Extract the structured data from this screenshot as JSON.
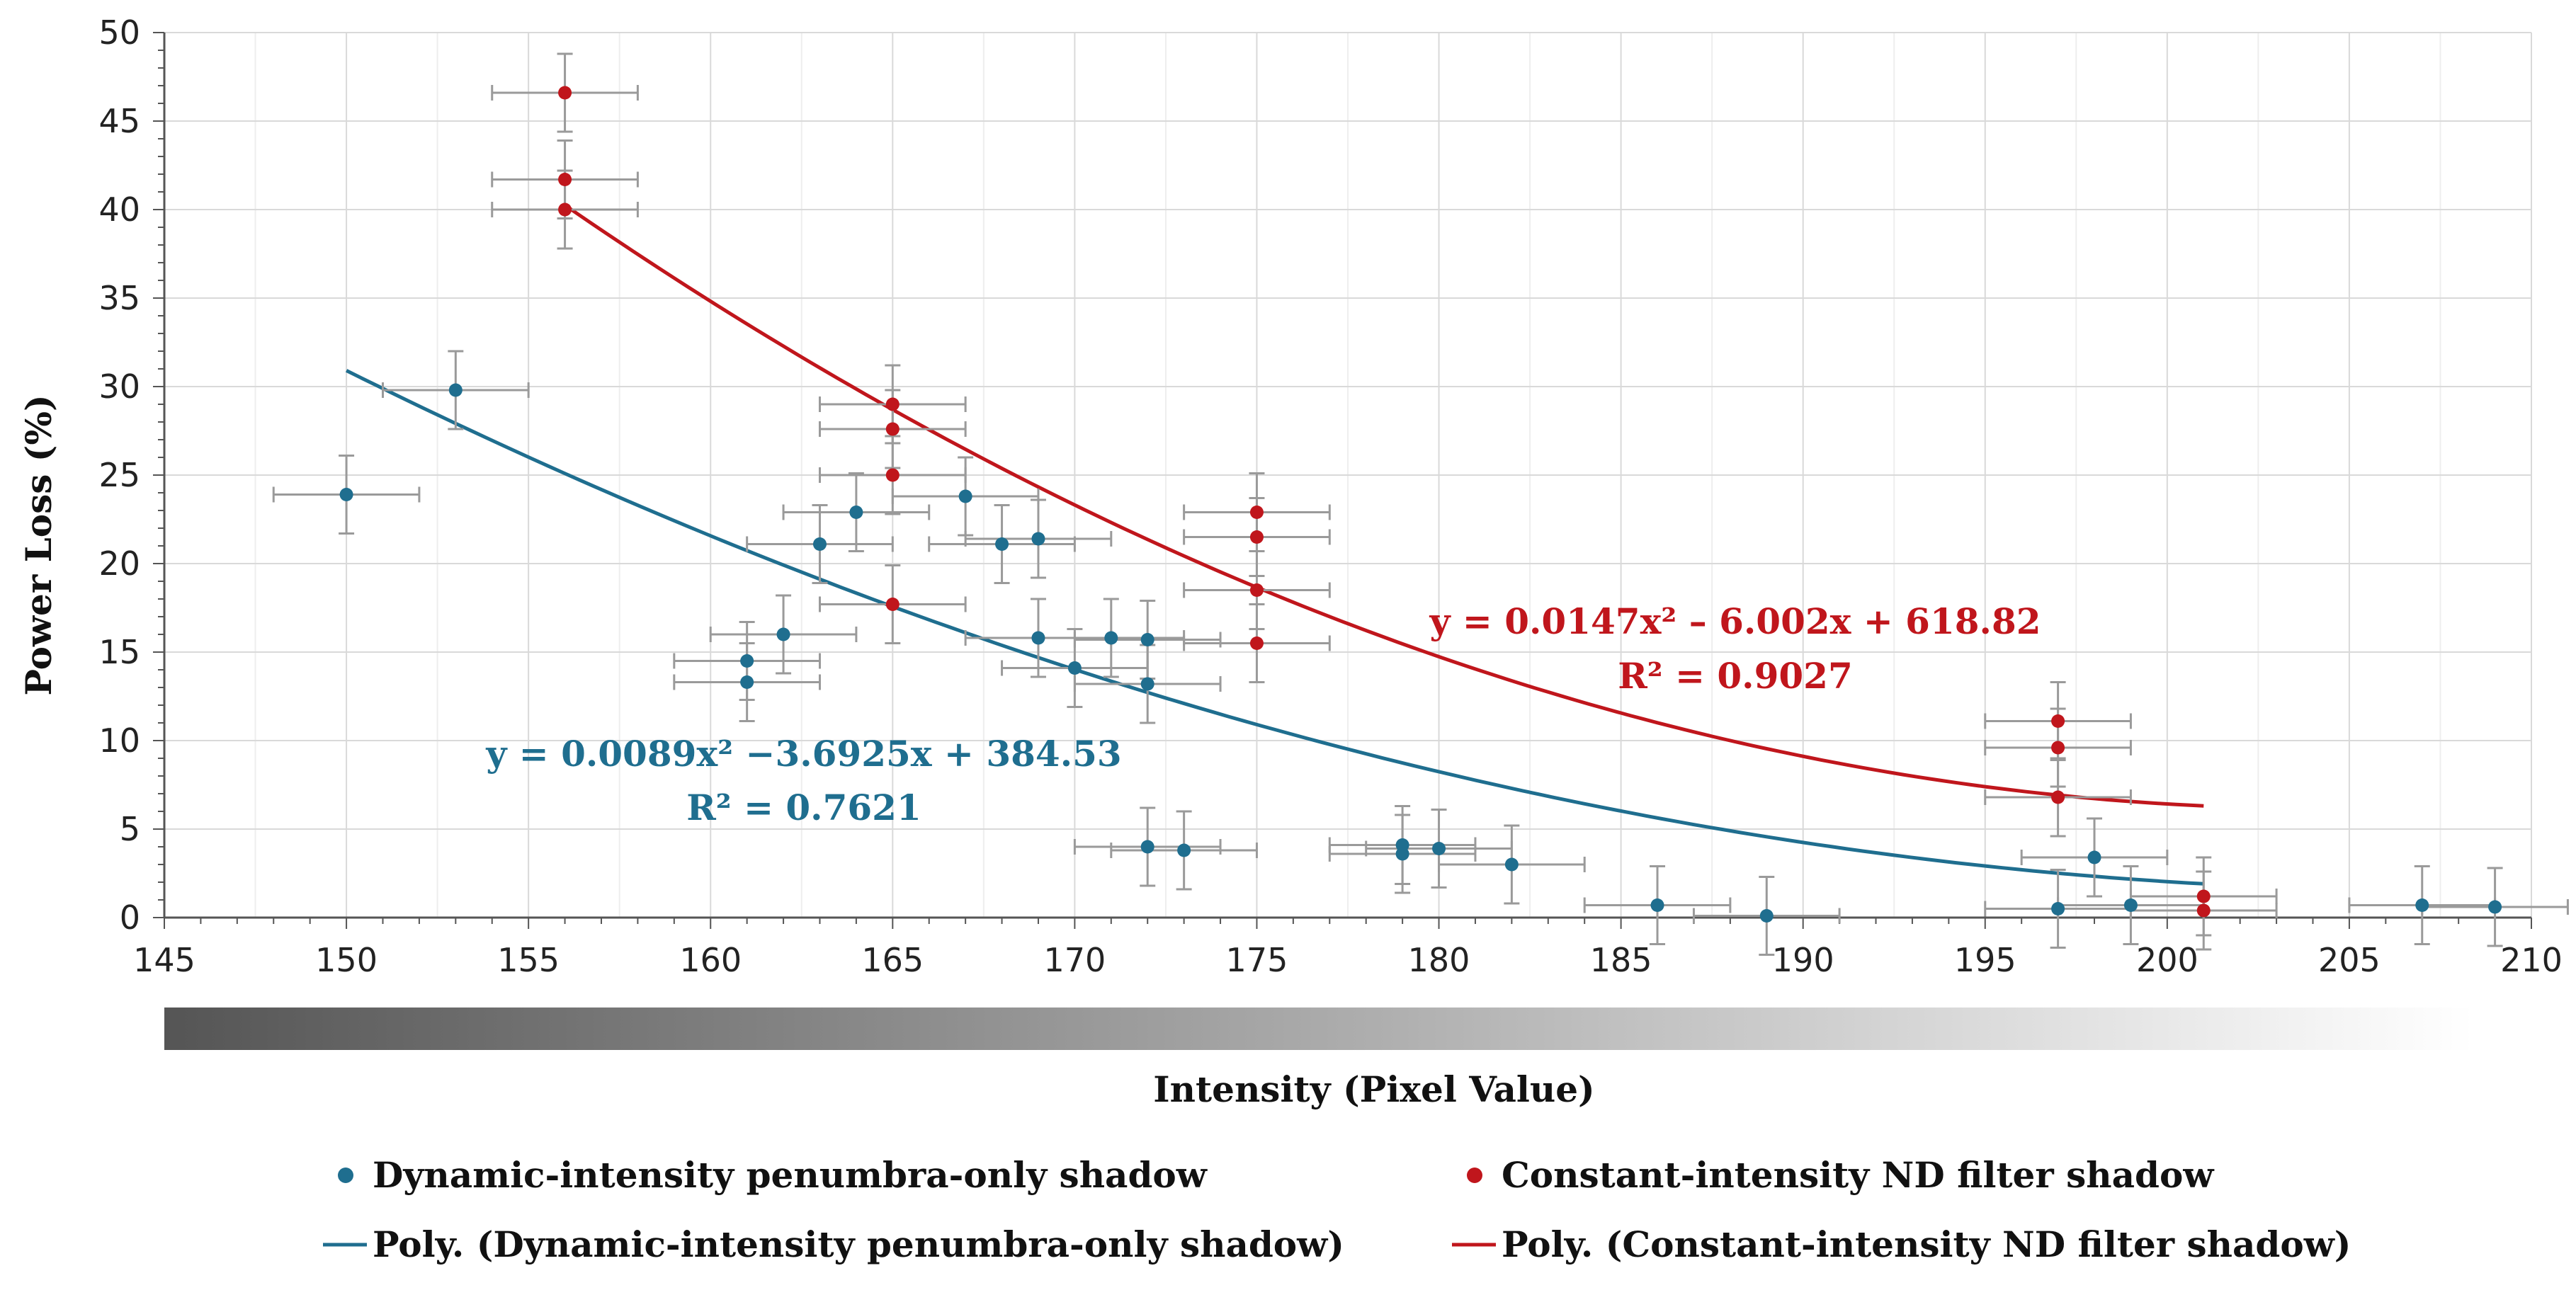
{
  "chart_data": {
    "type": "scatter",
    "title": "",
    "xlabel": "Intensity (Pixel Value)",
    "ylabel": "Power Loss (%)",
    "xlim": [
      145,
      210
    ],
    "ylim": [
      0,
      50
    ],
    "x_ticks": [
      145,
      150,
      155,
      160,
      165,
      170,
      175,
      180,
      185,
      190,
      195,
      200,
      205,
      210
    ],
    "y_ticks": [
      0,
      5,
      10,
      15,
      20,
      25,
      30,
      35,
      40,
      45,
      50
    ],
    "grid": true,
    "intensity_bar": {
      "from_color": "#555555",
      "to_color": "#ffffff"
    },
    "series": [
      {
        "name": "Dynamic-intensity penumbra-only shadow",
        "color": "#1f6e8f",
        "points": [
          {
            "x": 150,
            "y": 23.9,
            "xerr": 2,
            "yerr": 2.2
          },
          {
            "x": 153,
            "y": 29.8,
            "xerr": 2,
            "yerr": 2.2
          },
          {
            "x": 161,
            "y": 14.5,
            "xerr": 2,
            "yerr": 2.2
          },
          {
            "x": 161,
            "y": 13.3,
            "xerr": 2,
            "yerr": 2.2
          },
          {
            "x": 162,
            "y": 16.0,
            "xerr": 2,
            "yerr": 2.2
          },
          {
            "x": 163,
            "y": 21.1,
            "xerr": 2,
            "yerr": 2.2
          },
          {
            "x": 164,
            "y": 22.9,
            "xerr": 2,
            "yerr": 2.2
          },
          {
            "x": 167,
            "y": 23.8,
            "xerr": 2,
            "yerr": 2.2
          },
          {
            "x": 168,
            "y": 21.1,
            "xerr": 2,
            "yerr": 2.2
          },
          {
            "x": 169,
            "y": 21.4,
            "xerr": 2,
            "yerr": 2.2
          },
          {
            "x": 169,
            "y": 15.8,
            "xerr": 2,
            "yerr": 2.2
          },
          {
            "x": 170,
            "y": 14.1,
            "xerr": 2,
            "yerr": 2.2
          },
          {
            "x": 171,
            "y": 15.8,
            "xerr": 2,
            "yerr": 2.2
          },
          {
            "x": 172,
            "y": 15.7,
            "xerr": 2,
            "yerr": 2.2
          },
          {
            "x": 172,
            "y": 13.2,
            "xerr": 2,
            "yerr": 2.2
          },
          {
            "x": 172,
            "y": 4.0,
            "xerr": 2,
            "yerr": 2.2
          },
          {
            "x": 173,
            "y": 3.8,
            "xerr": 2,
            "yerr": 2.2
          },
          {
            "x": 179,
            "y": 4.1,
            "xerr": 2,
            "yerr": 2.2
          },
          {
            "x": 179,
            "y": 3.6,
            "xerr": 2,
            "yerr": 2.2
          },
          {
            "x": 180,
            "y": 3.9,
            "xerr": 2,
            "yerr": 2.2
          },
          {
            "x": 182,
            "y": 3.0,
            "xerr": 2,
            "yerr": 2.2
          },
          {
            "x": 186,
            "y": 0.7,
            "xerr": 2,
            "yerr": 2.2
          },
          {
            "x": 189,
            "y": 0.1,
            "xerr": 2,
            "yerr": 2.2
          },
          {
            "x": 197,
            "y": 0.5,
            "xerr": 2,
            "yerr": 2.2
          },
          {
            "x": 198,
            "y": 3.4,
            "xerr": 2,
            "yerr": 2.2
          },
          {
            "x": 199,
            "y": 0.7,
            "xerr": 2,
            "yerr": 2.2
          },
          {
            "x": 207,
            "y": 0.7,
            "xerr": 2,
            "yerr": 2.2
          },
          {
            "x": 209,
            "y": 0.6,
            "xerr": 2,
            "yerr": 2.2
          }
        ]
      },
      {
        "name": "Constant-intensity ND filter shadow",
        "color": "#c0161c",
        "points": [
          {
            "x": 156,
            "y": 46.6,
            "xerr": 2,
            "yerr": 2.2
          },
          {
            "x": 156,
            "y": 41.7,
            "xerr": 2,
            "yerr": 2.2
          },
          {
            "x": 156,
            "y": 40.0,
            "xerr": 2,
            "yerr": 2.2
          },
          {
            "x": 165,
            "y": 29.0,
            "xerr": 2,
            "yerr": 2.2
          },
          {
            "x": 165,
            "y": 27.6,
            "xerr": 2,
            "yerr": 2.2
          },
          {
            "x": 165,
            "y": 25.0,
            "xerr": 2,
            "yerr": 2.2
          },
          {
            "x": 165,
            "y": 17.7,
            "xerr": 2,
            "yerr": 2.2
          },
          {
            "x": 175,
            "y": 22.9,
            "xerr": 2,
            "yerr": 2.2
          },
          {
            "x": 175,
            "y": 21.5,
            "xerr": 2,
            "yerr": 2.2
          },
          {
            "x": 175,
            "y": 18.5,
            "xerr": 2,
            "yerr": 2.2
          },
          {
            "x": 175,
            "y": 15.5,
            "xerr": 2,
            "yerr": 2.2
          },
          {
            "x": 197,
            "y": 11.1,
            "xerr": 2,
            "yerr": 2.2
          },
          {
            "x": 197,
            "y": 9.6,
            "xerr": 2,
            "yerr": 2.2
          },
          {
            "x": 197,
            "y": 6.8,
            "xerr": 2,
            "yerr": 2.2
          },
          {
            "x": 201,
            "y": 1.2,
            "xerr": 2,
            "yerr": 2.2
          },
          {
            "x": 201,
            "y": 0.4,
            "xerr": 2,
            "yerr": 2.2
          }
        ]
      }
    ],
    "trendlines": [
      {
        "name": "Poly. (Dynamic-intensity penumbra-only shadow)",
        "color": "#1f6e8f",
        "coefficients": [
          0.0089,
          -3.6925,
          384.53
        ],
        "x_range": [
          150,
          201
        ],
        "equation": "y = 0.0089x² −3.6925x + 384.53",
        "r_squared": "R² = 0.7621"
      },
      {
        "name": "Poly. (Constant-intensity ND filter shadow)",
        "color": "#c0161c",
        "coefficients": [
          0.0147,
          -6.002,
          618.82
        ],
        "x_range": [
          156,
          201
        ],
        "equation": "y = 0.0147x² – 6.002x + 618.82",
        "r_squared": "R² = 0.9027"
      }
    ],
    "legend": {
      "position": "bottom",
      "entries": [
        "Dynamic-intensity penumbra-only shadow",
        "Constant-intensity ND filter shadow",
        "Poly. (Dynamic-intensity penumbra-only shadow)",
        "Poly. (Constant-intensity ND filter shadow)"
      ]
    }
  }
}
